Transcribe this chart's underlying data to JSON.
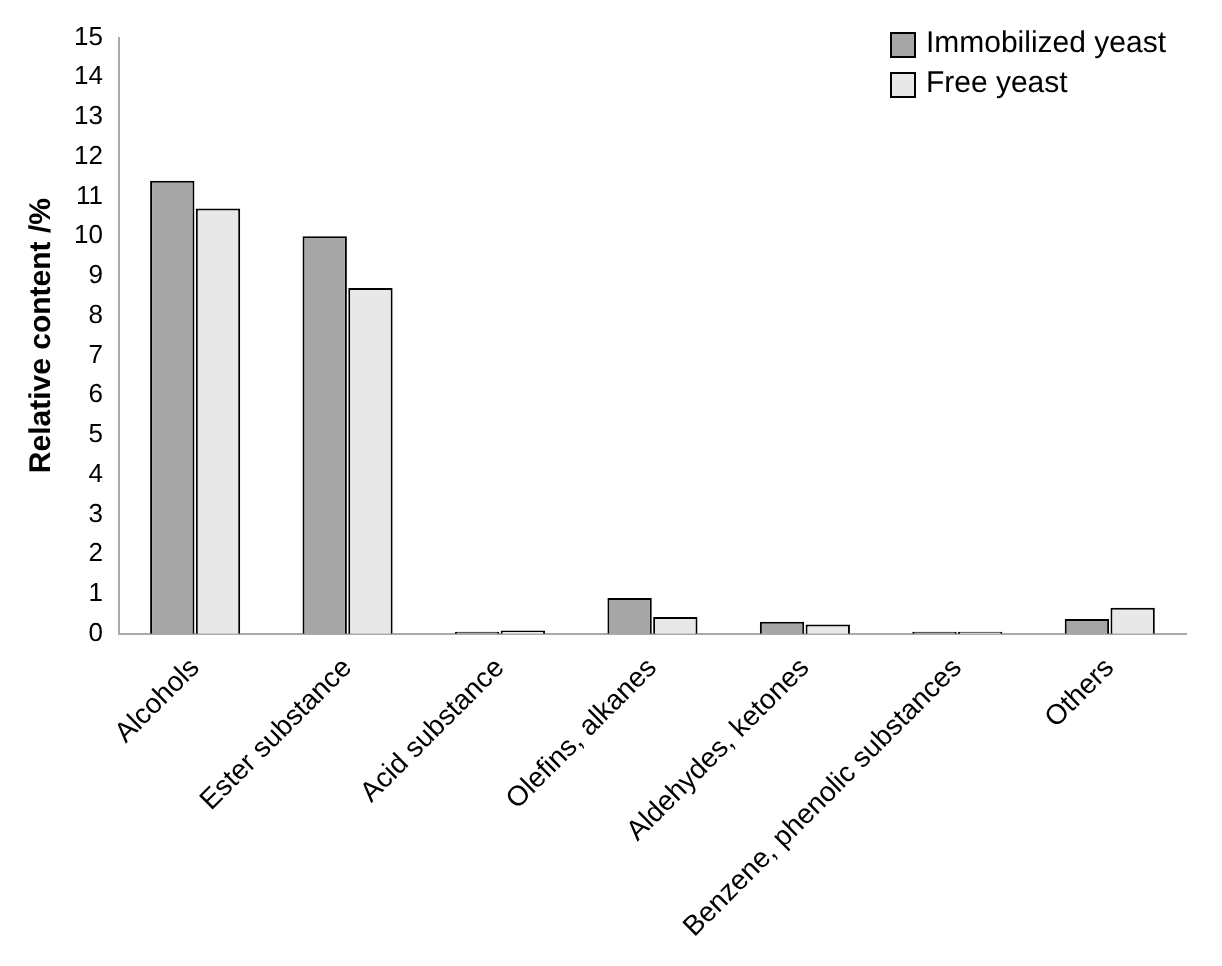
{
  "chart_data": {
    "type": "bar",
    "ylabel": "Relative content /%",
    "categories": [
      "Alcohols",
      "Ester substance",
      "Acid substance",
      "Olefins, alkanes",
      "Aldehydes, ketones",
      "Benzene, phenolic substances",
      "Others"
    ],
    "series": [
      {
        "name": "Immobilized yeast",
        "color": "#a6a6a6",
        "values": [
          11.4,
          10.0,
          0.05,
          0.9,
          0.3,
          0.05,
          0.37
        ]
      },
      {
        "name": "Free yeast",
        "color": "#e8e8e8",
        "values": [
          10.7,
          8.7,
          0.08,
          0.42,
          0.23,
          0.05,
          0.65
        ]
      }
    ],
    "ylim": [
      0,
      15
    ],
    "yticks": [
      0,
      1,
      2,
      3,
      4,
      5,
      6,
      7,
      8,
      9,
      10,
      11,
      12,
      13,
      14,
      15
    ],
    "grid": false,
    "legend": "top right"
  }
}
